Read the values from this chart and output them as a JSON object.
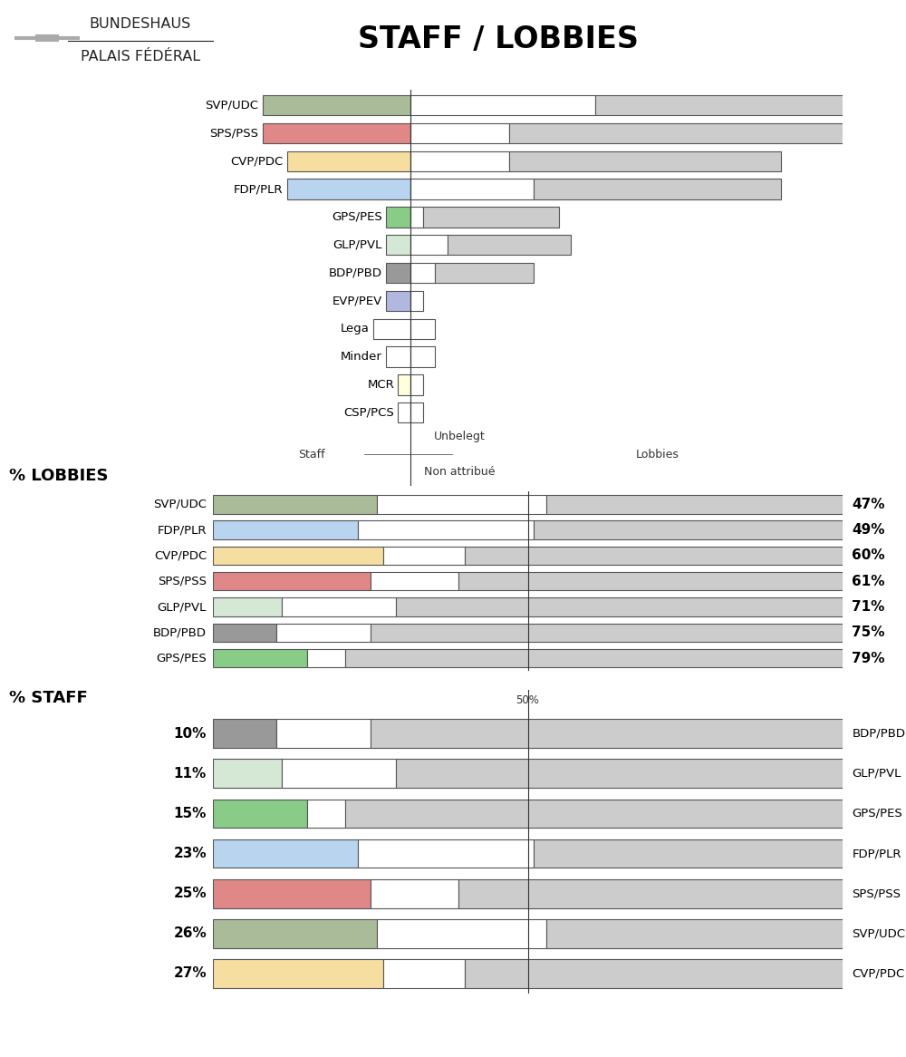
{
  "title": "STAFF / LOBBIES",
  "logo_text1": "BUNDESHAUS",
  "logo_text2": "PALAIS FÉDÉRAL",
  "top_parties": [
    "CSP/PCS",
    "MCR",
    "Minder",
    "Lega",
    "EVP/PEV",
    "BDP/PBD",
    "GLP/PVL",
    "GPS/PES",
    "FDP/PLR",
    "CVP/PDC",
    "SPS/PSS",
    "SVP/UDC"
  ],
  "top_colors": [
    "#ffffff",
    "#ffffdd",
    "#ffffff",
    "#ffffff",
    "#b0b8e0",
    "#999999",
    "#d5e8d5",
    "#88cc88",
    "#b8d4ee",
    "#f5dea0",
    "#e08888",
    "#aabb99"
  ],
  "top_staff": [
    1,
    1,
    2,
    3,
    2,
    2,
    2,
    2,
    10,
    10,
    12,
    12
  ],
  "top_unbelegt": [
    1,
    1,
    2,
    2,
    1,
    2,
    3,
    1,
    10,
    8,
    8,
    15
  ],
  "top_lobbies": [
    0,
    0,
    0,
    0,
    0,
    8,
    10,
    11,
    20,
    22,
    28,
    22
  ],
  "lobbies_parties": [
    "SVP/UDC",
    "FDP/PLR",
    "CVP/PDC",
    "SPS/PSS",
    "GLP/PVL",
    "BDP/PBD",
    "GPS/PES"
  ],
  "lobbies_colors": [
    "#aabb99",
    "#b8d4ee",
    "#f5dea0",
    "#e08888",
    "#d5e8d5",
    "#999999",
    "#88cc88"
  ],
  "lobbies_pct": [
    47,
    49,
    60,
    61,
    71,
    75,
    79
  ],
  "lobbies_staff_pct": [
    26,
    23,
    27,
    25,
    11,
    10,
    15
  ],
  "lobbies_unbelegt_pct": [
    27,
    28,
    13,
    14,
    18,
    15,
    6
  ],
  "staff_parties": [
    "BDP/PBD",
    "GLP/PVL",
    "GPS/PES",
    "FDP/PLR",
    "SPS/PSS",
    "SVP/UDC",
    "CVP/PDC"
  ],
  "staff_colors": [
    "#999999",
    "#d5e8d5",
    "#88cc88",
    "#b8d4ee",
    "#e08888",
    "#aabb99",
    "#f5dea0"
  ],
  "staff_pct": [
    10,
    11,
    15,
    23,
    25,
    26,
    27
  ],
  "staff_unbelegt_pct": [
    15,
    18,
    6,
    28,
    14,
    27,
    13
  ],
  "staff_lobbies_pct": [
    75,
    71,
    79,
    49,
    61,
    47,
    60
  ],
  "bg_color": "#ffffff",
  "bar_outline": "#555555",
  "unbelegt_color": "#ffffff",
  "lobbies_bar_color": "#cccccc"
}
